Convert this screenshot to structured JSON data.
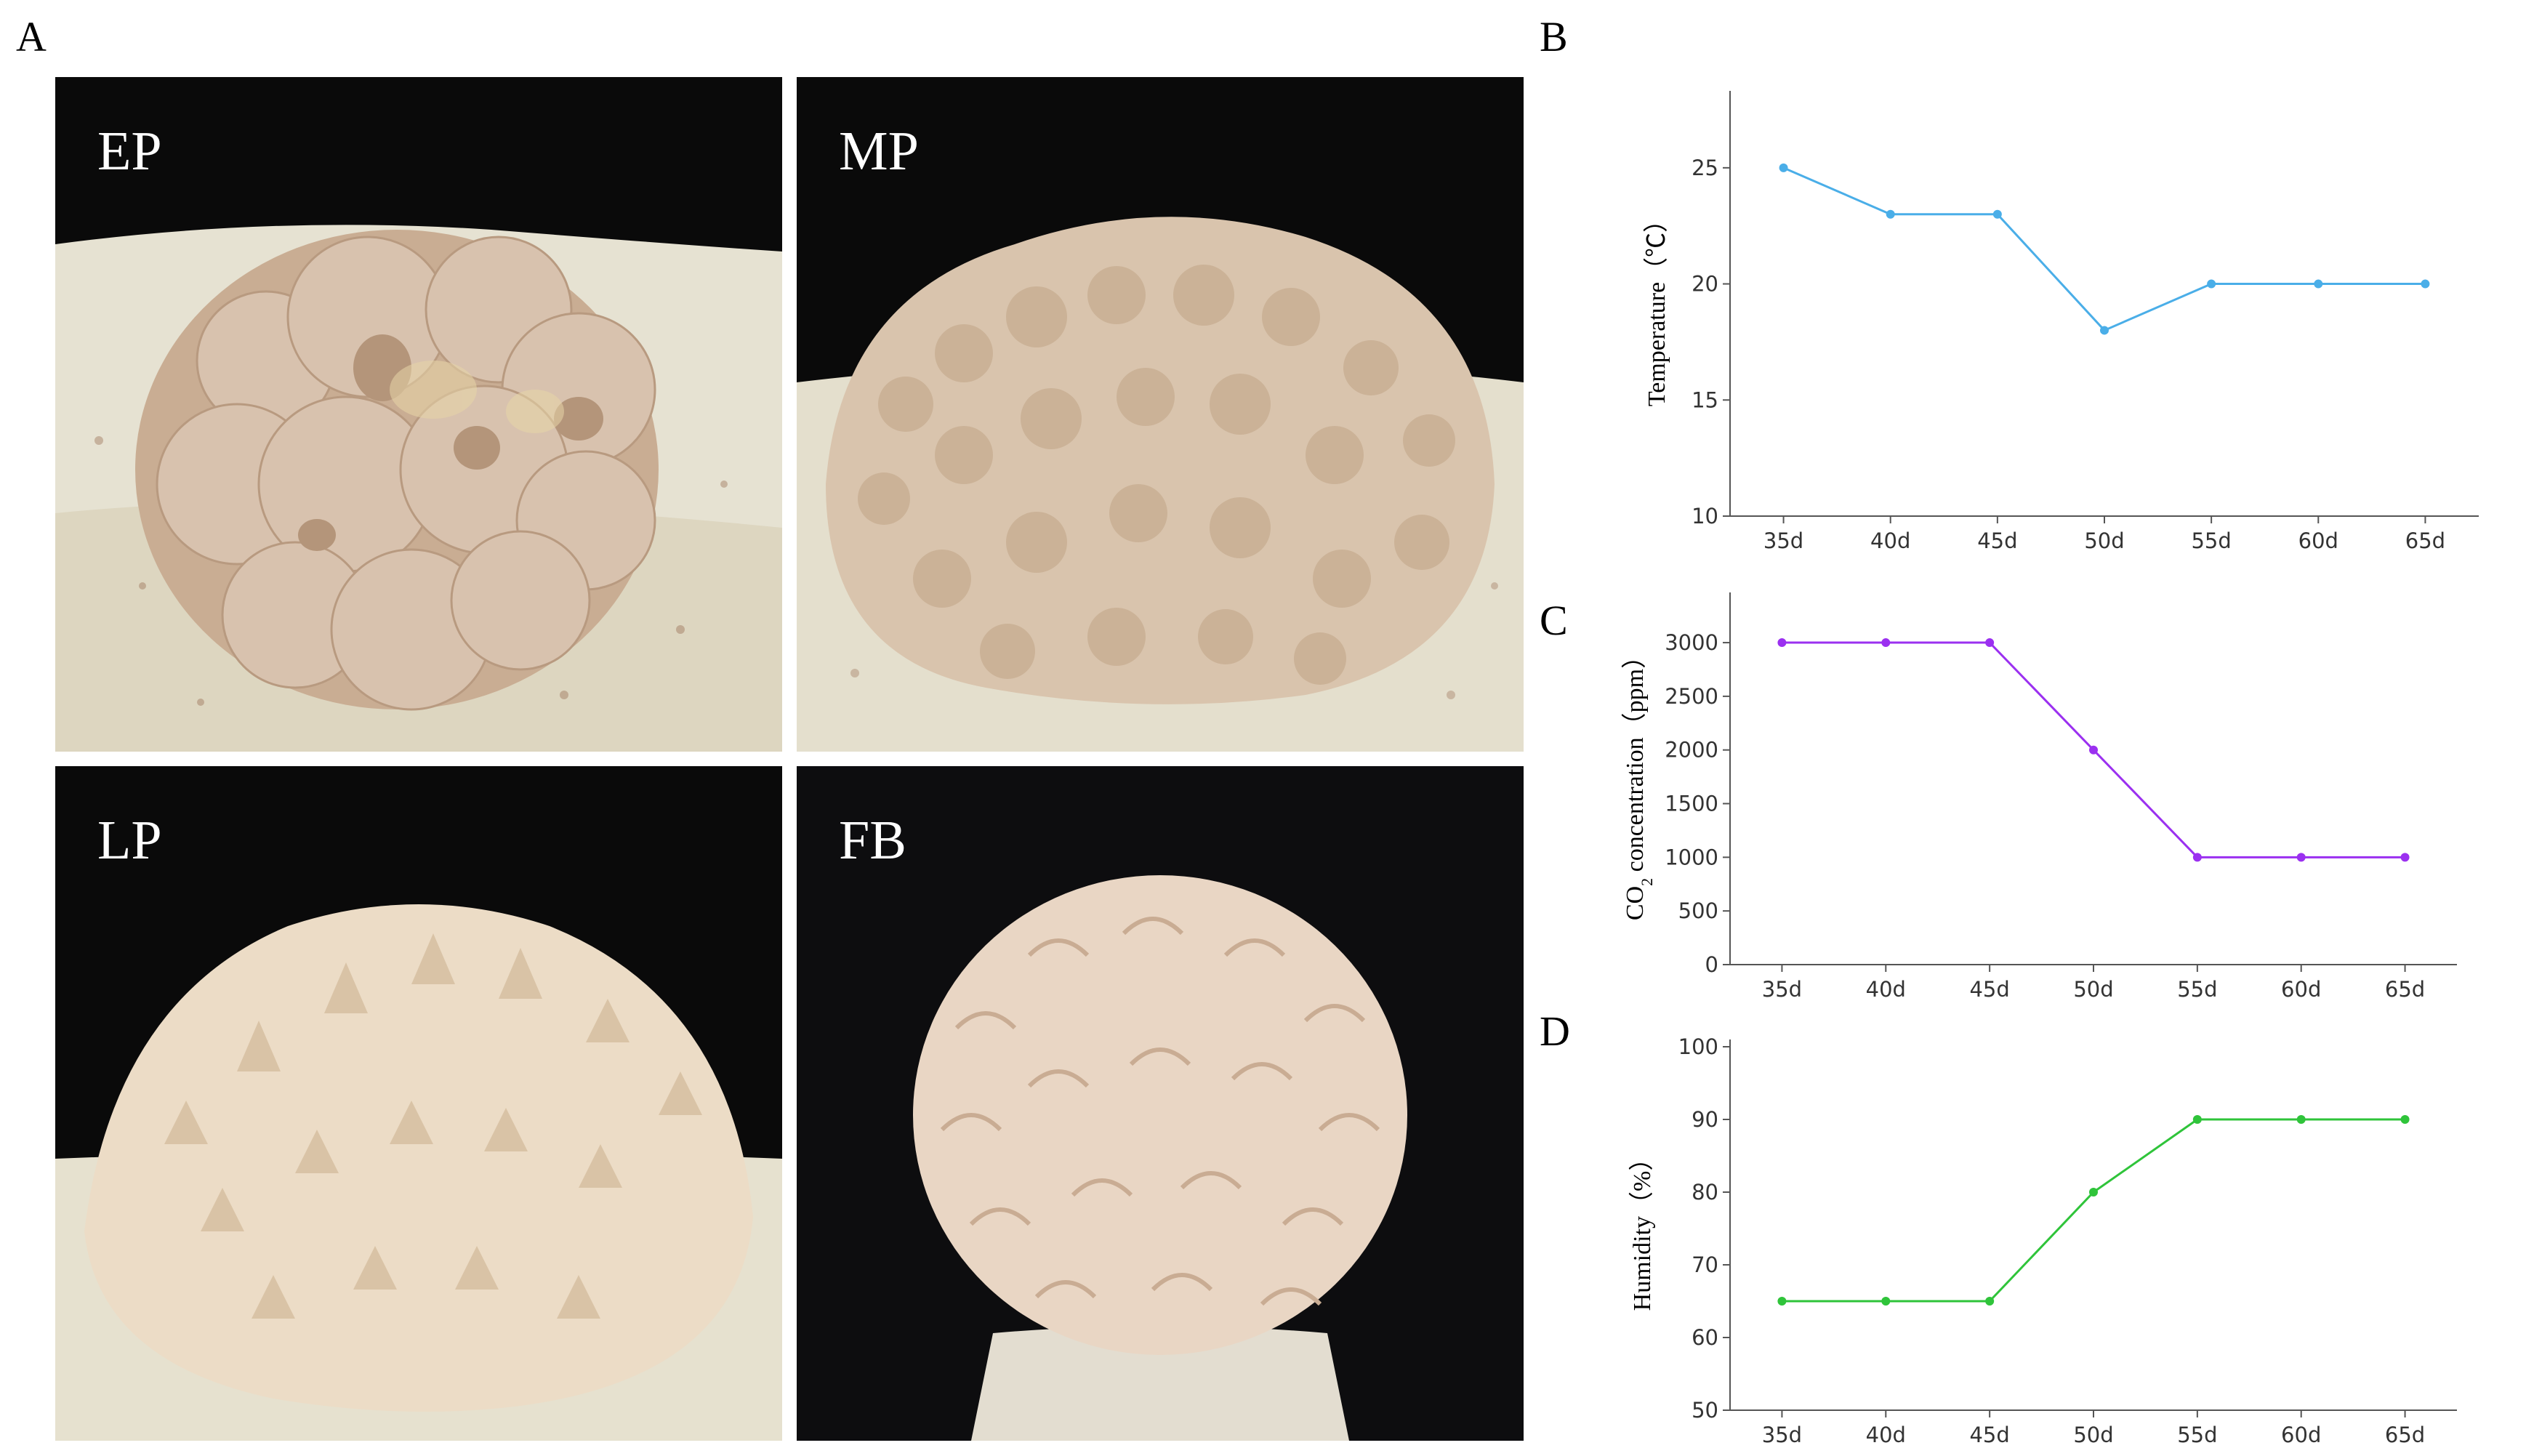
{
  "panels": {
    "A": "A",
    "B": "B",
    "C": "C",
    "D": "D"
  },
  "photos": [
    {
      "label": "EP",
      "subject": "early-primordium-mushroom"
    },
    {
      "label": "MP",
      "subject": "middle-primordium-mushroom"
    },
    {
      "label": "LP",
      "subject": "late-primordium-mushroom"
    },
    {
      "label": "FB",
      "subject": "fruiting-body-mushroom"
    }
  ],
  "colors": {
    "temperature": "#4aaee8",
    "co2": "#9b30f0",
    "humidity": "#2fc43a",
    "photo_background": "#0a0a0a",
    "mushroom_ep": "#d8c2ae",
    "mushroom_mp": "#d9c4ad",
    "mushroom_lp": "#ecdcc6",
    "mushroom_fb": "#e9d6c4",
    "substrate": "#e8e4d4"
  },
  "chart_data": [
    {
      "type": "line",
      "panel": "B",
      "categories": [
        "35d",
        "40d",
        "45d",
        "50d",
        "55d",
        "60d",
        "65d"
      ],
      "series": [
        {
          "values": [
            25,
            23,
            23,
            18,
            20,
            20,
            20
          ]
        }
      ],
      "ylabel": "Temperature（℃）",
      "yticks": [
        "10",
        "15",
        "20",
        "25"
      ],
      "ylim": [
        10,
        28
      ],
      "grid": false
    },
    {
      "type": "line",
      "panel": "C",
      "categories": [
        "35d",
        "40d",
        "45d",
        "50d",
        "55d",
        "60d",
        "65d"
      ],
      "series": [
        {
          "values": [
            3000,
            3000,
            3000,
            2000,
            1000,
            1000,
            1000
          ]
        }
      ],
      "ylabel_main": "CO",
      "ylabel_sub": "2",
      "ylabel_rest": "concentration（ppm）",
      "yticks": [
        "0",
        "500",
        "1000",
        "1500",
        "2000",
        "2500",
        "3000"
      ],
      "ylim": [
        0,
        3400
      ],
      "grid": false
    },
    {
      "type": "line",
      "panel": "D",
      "categories": [
        "35d",
        "40d",
        "45d",
        "50d",
        "55d",
        "60d",
        "65d"
      ],
      "series": [
        {
          "values": [
            65,
            65,
            65,
            80,
            90,
            90,
            90
          ]
        }
      ],
      "ylabel": "Humidity（%）",
      "yticks": [
        "50",
        "60",
        "70",
        "80",
        "90",
        "100"
      ],
      "ylim": [
        50,
        100
      ],
      "grid": false
    }
  ]
}
